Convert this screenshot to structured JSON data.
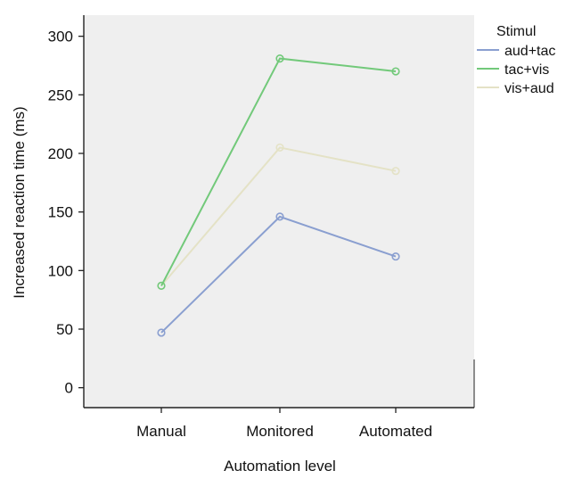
{
  "chart_data": {
    "type": "line",
    "title": "",
    "xlabel": "Automation level",
    "ylabel": "Increased reaction time (ms)",
    "categories": [
      "Manual",
      "Monitored",
      "Automated"
    ],
    "ylim": [
      -17,
      318
    ],
    "yticks": [
      0,
      50,
      100,
      150,
      200,
      250,
      300
    ],
    "grid": false,
    "legend": {
      "title": "Stimul",
      "placement": "top-right, outside plot"
    },
    "series": [
      {
        "name": "aud+tac",
        "color": "#8a9fd0",
        "values": [
          47,
          146,
          112
        ]
      },
      {
        "name": "tac+vis",
        "color": "#72c97a",
        "values": [
          87,
          281,
          270
        ]
      },
      {
        "name": "vis+aud",
        "color": "#e4e2c6",
        "values": [
          87,
          205,
          185
        ]
      }
    ],
    "plot_background": "#efefef"
  }
}
